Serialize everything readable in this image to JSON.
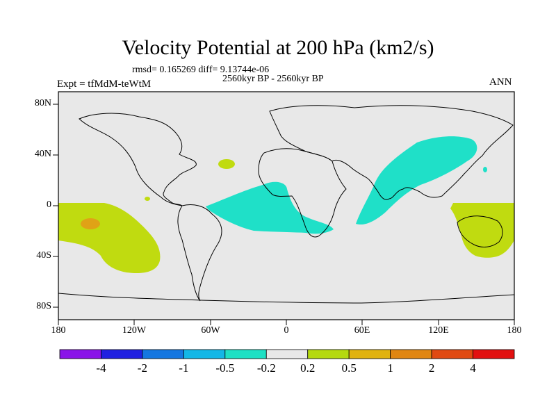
{
  "figure": {
    "title": "Velocity Potential at 200 hPa (km2/s)",
    "stats_line": "rmsd= 0.165269 diff= 9.13744e-06",
    "period": "2560kyr BP - 2560kyr BP",
    "experiment": "Expt = tfMdM-teWtM",
    "season": "ANN"
  },
  "axes": {
    "lat_ticks": [
      "80N",
      "40N",
      "0",
      "40S",
      "80S"
    ],
    "lon_ticks": [
      "180",
      "120W",
      "60W",
      "0",
      "60E",
      "120E",
      "180"
    ]
  },
  "colorbar": {
    "labels": [
      "-4",
      "-2",
      "-1",
      "-0.5",
      "-0.2",
      "0.2",
      "0.5",
      "1",
      "2",
      "4"
    ],
    "colors": [
      "#8a14e8",
      "#2020e0",
      "#1577e0",
      "#13b7e6",
      "#1ee0c4",
      "#e8e8e8",
      "#b5d90f",
      "#e0b20e",
      "#e08612",
      "#e04a12",
      "#e21010"
    ]
  },
  "colors": {
    "land_bg": "#e8e8e8",
    "positive_02": "#c0db10",
    "positive_05": "#e0a216",
    "negative_02": "#1fe0c8"
  }
}
